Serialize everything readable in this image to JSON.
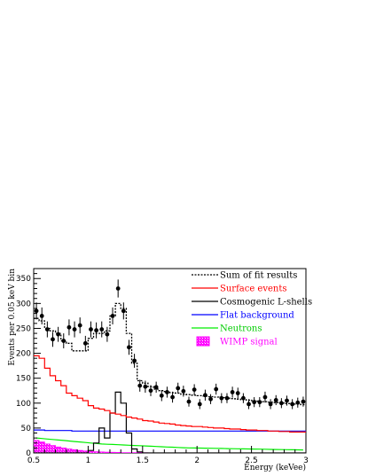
{
  "chart_data": {
    "type": "line",
    "xlabel": "Energy (keVee)",
    "ylabel": "Events per 0.05 keV bin",
    "xlim": [
      0.5,
      3.0
    ],
    "ylim": [
      0,
      370
    ],
    "x_ticks": [
      "0.5",
      "1",
      "1.5",
      "2",
      "2.5",
      "3"
    ],
    "x_tick_values": [
      0.5,
      1.0,
      1.5,
      2.0,
      2.5,
      3.0
    ],
    "y_ticks": [
      "0",
      "50",
      "100",
      "150",
      "200",
      "250",
      "300",
      "350"
    ],
    "y_tick_values": [
      0,
      50,
      100,
      150,
      200,
      250,
      300,
      350
    ],
    "bin_edges": [
      0.5,
      0.55,
      0.6,
      0.65,
      0.7,
      0.75,
      0.8,
      0.85,
      0.9,
      0.95,
      1.0,
      1.05,
      1.1,
      1.15,
      1.2,
      1.25,
      1.3,
      1.35,
      1.4,
      1.45,
      1.5,
      1.55,
      1.6,
      1.65,
      1.7,
      1.75,
      1.8,
      1.85,
      1.9,
      1.95,
      2.0,
      2.05,
      2.1,
      2.15,
      2.2,
      2.25,
      2.3,
      2.35,
      2.4,
      2.45,
      2.5,
      2.55,
      2.6,
      2.65,
      2.7,
      2.75,
      2.8,
      2.85,
      2.9,
      2.95,
      3.0
    ],
    "legend_position": "top-right",
    "grid": false,
    "series": [
      {
        "name": "Sum of fit results",
        "style": "step-dotted",
        "color": "#000000",
        "values": [
          270,
          265,
          250,
          245,
          240,
          225,
          220,
          205,
          205,
          205,
          230,
          240,
          240,
          245,
          275,
          300,
          290,
          240,
          180,
          145,
          140,
          133,
          128,
          125,
          123,
          121,
          120,
          118,
          117,
          116,
          115,
          114,
          113,
          112,
          111,
          110,
          109,
          108,
          107,
          106,
          105,
          104,
          103,
          102,
          101,
          100,
          99,
          98,
          98,
          97
        ]
      },
      {
        "name": "Surface events",
        "style": "step",
        "color": "#ff0000",
        "values": [
          195,
          190,
          170,
          155,
          145,
          135,
          120,
          115,
          110,
          105,
          95,
          90,
          88,
          85,
          80,
          78,
          75,
          72,
          70,
          68,
          65,
          64,
          62,
          60,
          59,
          58,
          56,
          55,
          54,
          53,
          53,
          52,
          51,
          50,
          50,
          49,
          48,
          48,
          47,
          46,
          46,
          45,
          45,
          44,
          44,
          43,
          43,
          42,
          42,
          42
        ]
      },
      {
        "name": "Cosmogenic L-shells",
        "style": "step",
        "color": "#000000",
        "values": [
          0,
          0,
          0,
          0,
          0,
          0,
          0,
          0,
          0,
          0,
          5,
          20,
          50,
          30,
          80,
          122,
          100,
          40,
          8,
          2,
          0,
          0,
          0,
          0,
          0,
          0,
          0,
          0,
          0,
          0,
          0,
          0,
          0,
          0,
          0,
          0,
          0,
          0,
          0,
          0,
          0,
          0,
          0,
          0,
          0,
          0,
          0,
          0,
          0,
          0
        ]
      },
      {
        "name": "Flat background",
        "style": "step",
        "color": "#0000ff",
        "values": [
          46,
          46,
          45,
          45,
          45,
          45,
          45,
          44,
          44,
          44,
          44,
          44,
          44,
          44,
          44,
          44,
          44,
          44,
          44,
          44,
          44,
          44,
          44,
          44,
          44,
          44,
          44,
          44,
          44,
          44,
          44,
          44,
          44,
          44,
          44,
          44,
          44,
          44,
          44,
          44,
          44,
          44,
          44,
          44,
          44,
          44,
          44,
          44,
          44,
          44
        ]
      },
      {
        "name": "Neutrons",
        "style": "line",
        "color": "#00ee00",
        "values": [
          30,
          29,
          28,
          27,
          26,
          25,
          24,
          23,
          22,
          21,
          20,
          19,
          18,
          17.5,
          17,
          16.5,
          16,
          15.5,
          15,
          14.5,
          14,
          13.5,
          13,
          12.5,
          12,
          11.5,
          11,
          10.5,
          10.2,
          10,
          9.8,
          9.6,
          9.4,
          9.2,
          9,
          8.8,
          8.6,
          8.4,
          8.2,
          8,
          7.8,
          7.6,
          7.4,
          7.2,
          7,
          6.8,
          6.6,
          6.4,
          6.2,
          6
        ]
      },
      {
        "name": "WIMP signal",
        "style": "filled-hatch",
        "color": "#ff00ff",
        "values": [
          25,
          22,
          18,
          15,
          12,
          10,
          8,
          6.5,
          5,
          4,
          3,
          2.5,
          2,
          1.5,
          1.2,
          1,
          0.8,
          0.6,
          0.5,
          0.4,
          0.3,
          0.2,
          0.15,
          0.1,
          0.05,
          0,
          0,
          0,
          0,
          0,
          0,
          0,
          0,
          0,
          0,
          0,
          0,
          0,
          0,
          0,
          0,
          0,
          0,
          0,
          0,
          0,
          0,
          0,
          0,
          0
        ]
      }
    ],
    "data_points": {
      "name": "data",
      "color": "#000000",
      "x": [
        0.525,
        0.575,
        0.625,
        0.675,
        0.725,
        0.775,
        0.825,
        0.875,
        0.925,
        0.975,
        1.025,
        1.075,
        1.125,
        1.175,
        1.225,
        1.275,
        1.325,
        1.375,
        1.425,
        1.475,
        1.525,
        1.575,
        1.625,
        1.675,
        1.725,
        1.775,
        1.825,
        1.875,
        1.925,
        1.975,
        2.025,
        2.075,
        2.125,
        2.175,
        2.225,
        2.275,
        2.325,
        2.375,
        2.425,
        2.475,
        2.525,
        2.575,
        2.625,
        2.675,
        2.725,
        2.775,
        2.825,
        2.875,
        2.925,
        2.975
      ],
      "y": [
        285,
        275,
        248,
        228,
        238,
        225,
        252,
        248,
        256,
        220,
        248,
        246,
        248,
        238,
        275,
        330,
        285,
        212,
        185,
        135,
        133,
        125,
        132,
        115,
        122,
        112,
        130,
        124,
        103,
        127,
        98,
        116,
        108,
        128,
        110,
        110,
        122,
        120,
        110,
        98,
        102,
        102,
        112,
        98,
        106,
        100,
        105,
        98,
        101,
        103
      ],
      "err": [
        17,
        17,
        16,
        15,
        15,
        15,
        16,
        16,
        16,
        15,
        16,
        16,
        16,
        15,
        17,
        18,
        17,
        15,
        14,
        12,
        12,
        11,
        11,
        11,
        11,
        11,
        11,
        11,
        10,
        11,
        10,
        11,
        10,
        11,
        10,
        10,
        11,
        11,
        10,
        10,
        10,
        10,
        11,
        10,
        10,
        10,
        10,
        10,
        10,
        10
      ]
    }
  }
}
